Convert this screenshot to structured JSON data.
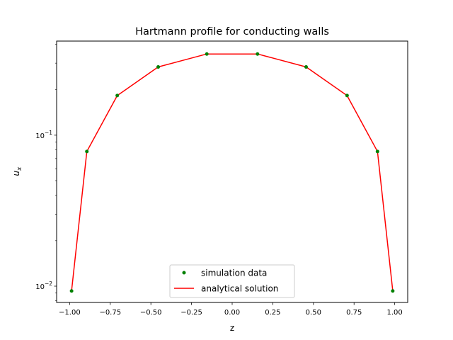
{
  "chart_data": {
    "type": "line",
    "title": "Hartmann profile for conducting walls",
    "xlabel": "z",
    "ylabel_base": "u",
    "ylabel_sub": "x",
    "xlim": [
      -1.08,
      1.08
    ],
    "ylim": [
      0.0078,
      0.42
    ],
    "yscale": "log",
    "grid": false,
    "legend_position": "lower center",
    "x_ticks": [
      {
        "value": -1.0,
        "label": "−1.00"
      },
      {
        "value": -0.75,
        "label": "−0.75"
      },
      {
        "value": -0.5,
        "label": "−0.50"
      },
      {
        "value": -0.25,
        "label": "−0.25"
      },
      {
        "value": 0.0,
        "label": "0.00"
      },
      {
        "value": 0.25,
        "label": "0.25"
      },
      {
        "value": 0.5,
        "label": "0.50"
      },
      {
        "value": 0.75,
        "label": "0.75"
      },
      {
        "value": 1.0,
        "label": "1.00"
      }
    ],
    "y_major_ticks": [
      {
        "value": 0.01,
        "base": "10",
        "exp": "−2"
      },
      {
        "value": 0.1,
        "base": "10",
        "exp": "−1"
      }
    ],
    "y_minor_ticks": [
      0.008,
      0.009,
      0.02,
      0.03,
      0.04,
      0.05,
      0.06,
      0.07,
      0.08,
      0.09,
      0.2,
      0.3,
      0.4
    ],
    "series": [
      {
        "name": "simulation data",
        "style": "markers",
        "color": "#008000",
        "x": [
          -0.988,
          -0.894,
          -0.707,
          -0.455,
          -0.156,
          0.156,
          0.455,
          0.707,
          0.894,
          0.988
        ],
        "y": [
          0.0093,
          0.078,
          0.183,
          0.283,
          0.345,
          0.345,
          0.283,
          0.183,
          0.078,
          0.0093
        ]
      },
      {
        "name": "analytical solution",
        "style": "line",
        "color": "#ff0000",
        "x": [
          -0.988,
          -0.894,
          -0.707,
          -0.455,
          -0.156,
          0.156,
          0.455,
          0.707,
          0.894,
          0.988
        ],
        "y": [
          0.0093,
          0.078,
          0.183,
          0.283,
          0.345,
          0.345,
          0.283,
          0.183,
          0.078,
          0.0093
        ]
      }
    ]
  }
}
